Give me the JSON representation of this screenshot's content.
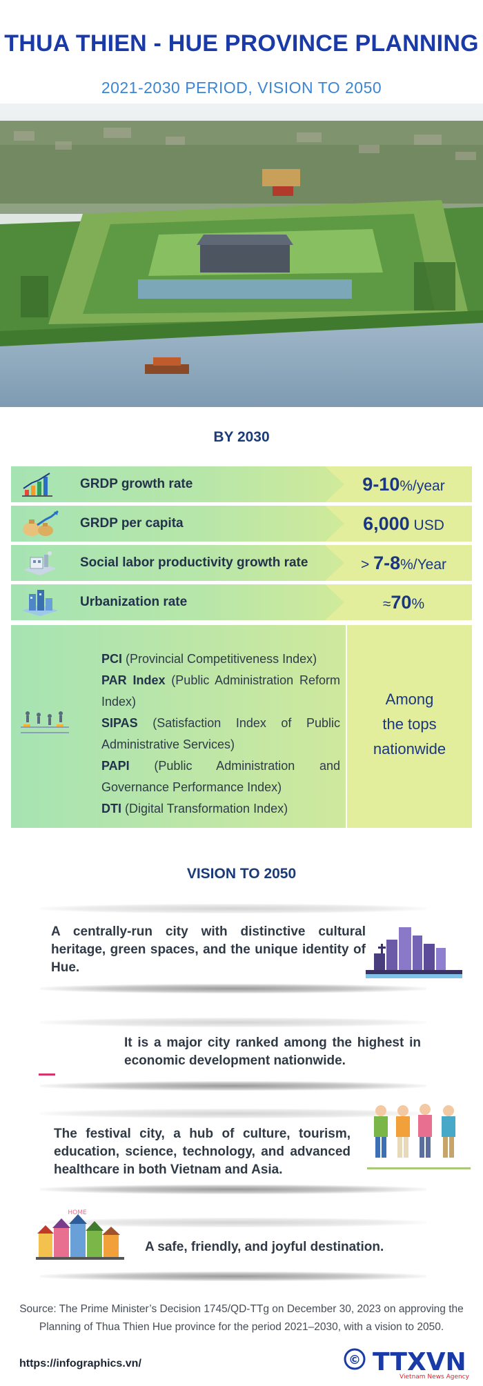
{
  "header": {
    "title": "THUA THIEN - HUE PROVINCE PLANNING",
    "subtitle": "2021-2030 PERIOD, VISION TO 2050"
  },
  "by2030": {
    "heading": "BY 2030",
    "rows": [
      {
        "label": "GRDP growth rate",
        "icon": "growth-chart-icon",
        "value_prefix": "",
        "value_bold": "9-10",
        "value_suffix": "%/year"
      },
      {
        "label": "GRDP per capita",
        "icon": "money-bags-icon",
        "value_prefix": "",
        "value_bold": "6,000",
        "value_suffix": " USD"
      },
      {
        "label": "Social labor productivity growth rate",
        "icon": "factory-icon",
        "value_prefix": "> ",
        "value_bold": "7-8",
        "value_suffix": "%/Year"
      },
      {
        "label": "Urbanization rate",
        "icon": "city-buildings-icon",
        "value_prefix": "≈",
        "value_bold": "70",
        "value_suffix": "%"
      }
    ],
    "indices": [
      {
        "abbr": "PCI",
        "full": " (Provincial Competitiveness Index)"
      },
      {
        "abbr": "PAR Index",
        "full": " (Public Administration Reform Index)"
      },
      {
        "abbr": "SIPAS",
        "full": " (Satisfaction Index of Public Administrative Services)"
      },
      {
        "abbr": "PAPI",
        "full": " (Public Administration and Governance Performance Index)"
      },
      {
        "abbr": "DTI",
        "full": " (Digital Transformation Index)"
      }
    ],
    "indices_icon": "runners-icon",
    "indices_result": [
      "Among",
      "the tops",
      "nationwide"
    ]
  },
  "vision": {
    "heading": "VISION TO 2050",
    "items": [
      {
        "text": "A centrally-run city with distinctive cultural heritage, green spaces, and the unique identity of Hue.",
        "icon": "city-skyline-icon"
      },
      {
        "text": "It is a major city ranked among the highest in economic development nationwide.",
        "icon": "pink-dash-icon"
      },
      {
        "text": "The festival city, a hub of culture, tourism, education, science, technology, and advanced healthcare in both Vietnam and Asia.",
        "icon": "tourists-icon"
      },
      {
        "text": "A safe, friendly, and joyful destination.",
        "icon": "houses-icon",
        "sign_text": "HOME"
      }
    ]
  },
  "footer": {
    "source": "Source: The Prime Minister’s Decision 1745/QD-TTg on December 30, 2023 on approving the Planning of Thua Thien Hue province for the period 2021–2030, with a vision to 2050.",
    "url": "https://infographics.vn/",
    "copyright_symbol": "©",
    "logo_text": "TTXVN",
    "logo_sub": "Vietnam News Agency"
  },
  "colors": {
    "title_blue": "#1a3aa8",
    "subtitle_blue": "#3a86d4",
    "heading_navy": "#1b3a78",
    "value_blue": "#1a3680",
    "band_green": "#a6e3b3",
    "band_yellow": "#e3ee9c",
    "logo_red": "#e0222a"
  }
}
